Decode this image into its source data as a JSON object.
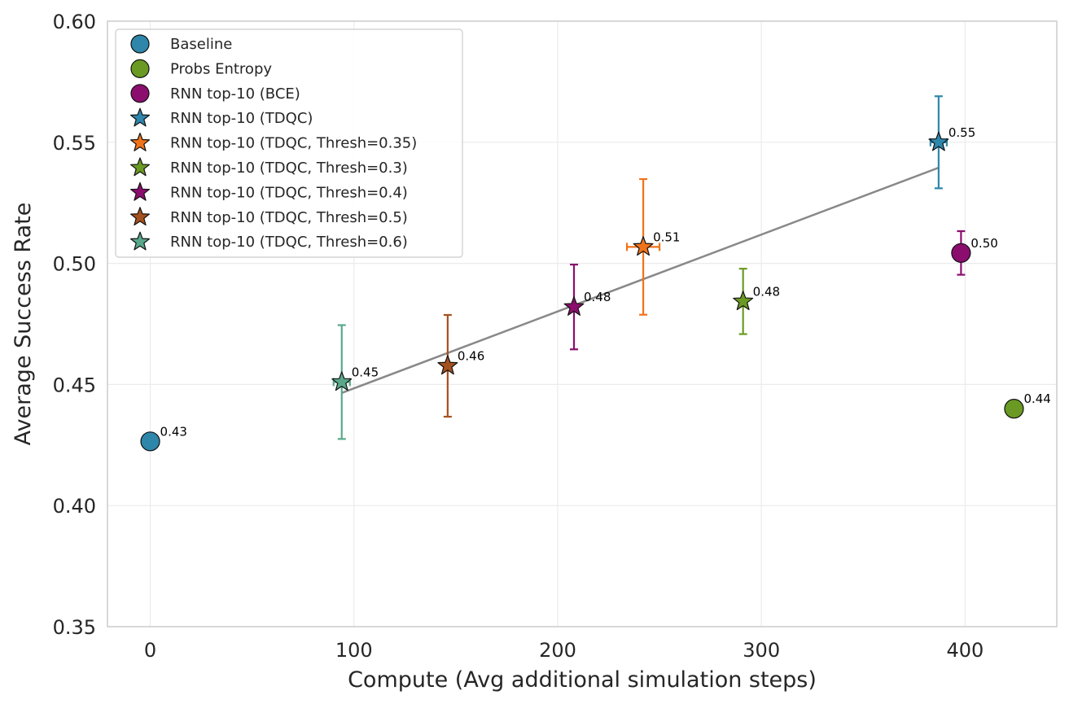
{
  "chart_data": {
    "type": "scatter",
    "title": "",
    "xlabel": "Compute (Avg additional simulation steps)",
    "ylabel": "Average Success Rate",
    "xlim": [
      -21,
      445
    ],
    "ylim": [
      0.35,
      0.6
    ],
    "xticks": [
      0,
      100,
      200,
      300,
      400
    ],
    "yticks": [
      0.35,
      0.4,
      0.45,
      0.5,
      0.55,
      0.6
    ],
    "xtick_labels": [
      "0",
      "100",
      "200",
      "300",
      "400"
    ],
    "ytick_labels": [
      "0.35",
      "0.40",
      "0.45",
      "0.50",
      "0.55",
      "0.60"
    ],
    "grid": true,
    "legend_position": "top-left",
    "series": [
      {
        "name": "Baseline",
        "marker": "circle",
        "color": "#2e86ab",
        "points": [
          {
            "x": 0,
            "y": 0.4265,
            "label": "0.43"
          }
        ]
      },
      {
        "name": "Probs Entropy",
        "marker": "circle",
        "color": "#6a9a23",
        "points": [
          {
            "x": 424,
            "y": 0.44,
            "label": "0.44"
          }
        ]
      },
      {
        "name": "RNN top-10 (BCE)",
        "marker": "circle",
        "color": "#8b0e6e",
        "points": [
          {
            "x": 398,
            "y": 0.5043,
            "label": "0.50",
            "yerr": [
              0.009,
              0.009
            ]
          }
        ]
      },
      {
        "name": "RNN top-10 (TDQC)",
        "marker": "star",
        "color": "#2e86ab",
        "points": [
          {
            "x": 387,
            "y": 0.55,
            "label": "0.55",
            "yerr": [
              0.019,
              0.019
            ],
            "xerr": [
              4,
              4
            ]
          }
        ]
      },
      {
        "name": "RNN top-10 (TDQC, Thresh=0.35)",
        "marker": "star",
        "color": "#f0731a",
        "points": [
          {
            "x": 242,
            "y": 0.5068,
            "label": "0.51",
            "yerr": [
              0.028,
              0.028
            ],
            "xerr": [
              8,
              8
            ]
          }
        ]
      },
      {
        "name": "RNN top-10 (TDQC, Thresh=0.3)",
        "marker": "star",
        "color": "#6a9a23",
        "points": [
          {
            "x": 291,
            "y": 0.4843,
            "label": "0.48",
            "yerr": [
              0.0135,
              0.0135
            ]
          }
        ]
      },
      {
        "name": "RNN top-10 (TDQC, Thresh=0.4)",
        "marker": "star",
        "color": "#8b0e6e",
        "points": [
          {
            "x": 208,
            "y": 0.482,
            "label": "0.48",
            "yerr": [
              0.0175,
              0.0175
            ]
          }
        ]
      },
      {
        "name": "RNN top-10 (TDQC, Thresh=0.5)",
        "marker": "star",
        "color": "#a5511f",
        "points": [
          {
            "x": 146,
            "y": 0.4577,
            "label": "0.46",
            "yerr": [
              0.021,
              0.021
            ]
          }
        ]
      },
      {
        "name": "RNN top-10 (TDQC, Thresh=0.6)",
        "marker": "star",
        "color": "#5aa88a",
        "points": [
          {
            "x": 94,
            "y": 0.451,
            "label": "0.45",
            "yerr": [
              0.0235,
              0.0235
            ],
            "xerr": [
              4,
              4
            ]
          }
        ]
      }
    ],
    "trend_line": {
      "color": "#888888",
      "points": [
        {
          "x": 94,
          "y": 0.4465
        },
        {
          "x": 387,
          "y": 0.5395
        }
      ]
    }
  }
}
